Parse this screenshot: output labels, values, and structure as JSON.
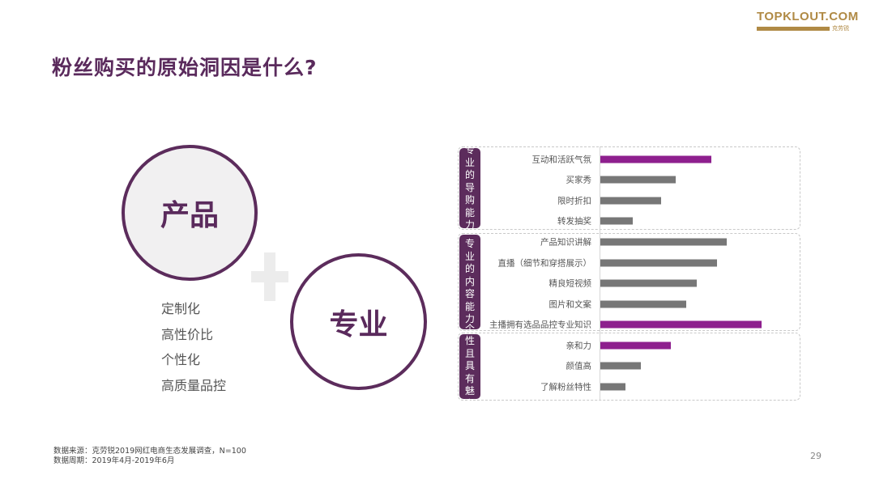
{
  "title": "粉丝购买的原始洞因是什么?",
  "logo": {
    "text": "TOPKLOUT.COM",
    "sub": "克劳锐"
  },
  "circles": {
    "product": "产品",
    "professional": "专业"
  },
  "product_features": [
    "定制化",
    "高性价比",
    "个性化",
    "高质量品控"
  ],
  "colors": {
    "accent": "#8e1f8e",
    "bar": "#777777",
    "brand": "#5c2c5c"
  },
  "chart_data": {
    "type": "bar",
    "orientation": "horizontal",
    "axis_labels_shown": false,
    "groups": [
      {
        "label": "专业的导购能力",
        "categories": [
          "互动和活跃气氛",
          "买家秀",
          "限时折扣",
          "转发抽奖"
        ],
        "values": [
          137,
          93,
          75,
          40
        ],
        "highlight": [
          true,
          false,
          false,
          false
        ]
      },
      {
        "label": "专业的内容能力",
        "categories": [
          "产品知识讲解",
          "直播（细节和穿搭展示）",
          "精良短视频",
          "图片和文案",
          "主播拥有选品品控专业知识"
        ],
        "values": [
          156,
          144,
          119,
          106,
          199
        ],
        "highlight": [
          false,
          false,
          false,
          false,
          true
        ]
      },
      {
        "label": "个性且具有魅力",
        "categories": [
          "亲和力",
          "颜值高",
          "了解粉丝特性"
        ],
        "values": [
          87,
          50,
          31
        ],
        "highlight": [
          true,
          false,
          false
        ]
      }
    ]
  },
  "footnote": {
    "source": "数据来源：克劳锐2019网红电商生态发展调查，N=100",
    "period": "数据周期：2019年4月-2019年6月"
  },
  "page_number": "29"
}
